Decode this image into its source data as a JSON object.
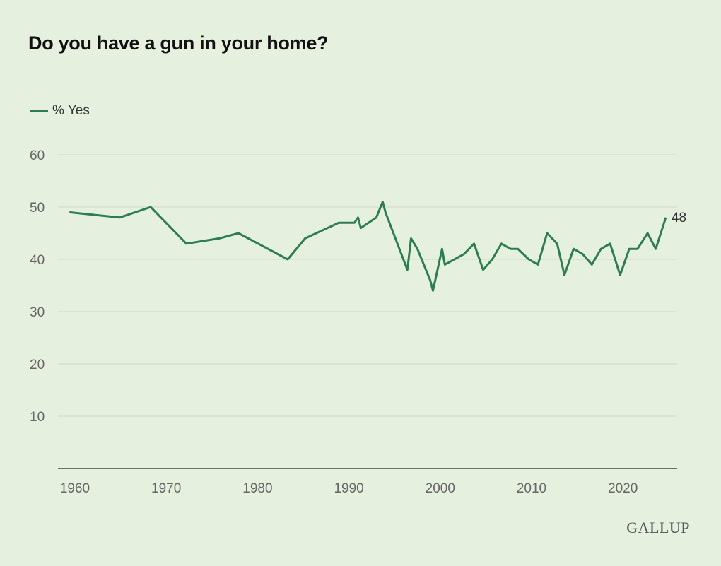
{
  "chart_data": {
    "type": "line",
    "title": "Do you have a gun in your home?",
    "xlabel": "",
    "ylabel": "",
    "xlim": [
      1959,
      2026
    ],
    "ylim": [
      0,
      60
    ],
    "x_ticks": [
      1960,
      1970,
      1980,
      1990,
      2000,
      2010,
      2020
    ],
    "y_ticks": [
      10,
      20,
      30,
      40,
      50,
      60
    ],
    "grid": true,
    "legend_position": "top-left",
    "series": [
      {
        "name": "% Yes",
        "color": "#2e7d4f",
        "x": [
          1959.4,
          1964.9,
          1968.3,
          1972.2,
          1975.8,
          1977.9,
          1983.3,
          1985.2,
          1988.9,
          1990.6,
          1991.0,
          1991.3,
          1993.0,
          1993.7,
          1994.0,
          1996.4,
          1996.8,
          1997.5,
          1998.9,
          1999.2,
          2000.2,
          2000.5,
          2002.6,
          2003.7,
          2004.7,
          2005.7,
          2006.7,
          2007.7,
          2008.5,
          2009.7,
          2010.7,
          2011.7,
          2012.8,
          2013.6,
          2014.6,
          2015.6,
          2016.6,
          2017.6,
          2018.6,
          2019.7,
          2020.7,
          2021.6,
          2022.7,
          2023.6,
          2024.7
        ],
        "y": [
          49,
          48,
          50,
          43,
          44,
          45,
          40,
          44,
          47,
          47,
          48,
          46,
          48,
          51,
          49,
          38,
          44,
          42,
          36,
          34,
          42,
          39,
          41,
          43,
          38,
          40,
          43,
          42,
          42,
          40,
          39,
          45,
          43,
          37,
          42,
          41,
          39,
          42,
          43,
          37,
          42,
          42,
          45,
          42,
          48
        ]
      }
    ],
    "end_label": "48"
  },
  "legend": {
    "label": "% Yes"
  },
  "source_logo": "GALLUP"
}
